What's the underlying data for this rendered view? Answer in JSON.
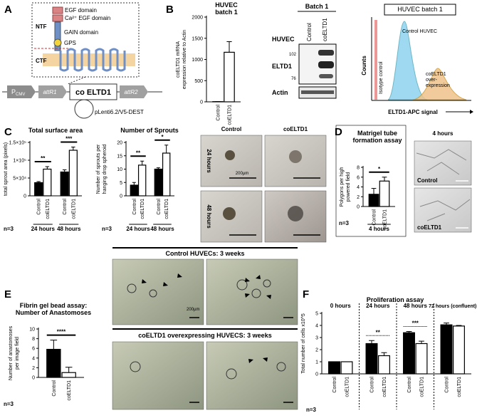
{
  "panel_labels": [
    "A",
    "B",
    "C",
    "D",
    "E",
    "F"
  ],
  "diagram": {
    "domains": [
      "NTF",
      "EGF domain",
      "Ca²⁺ EGF domain",
      "GAIN domain",
      "GPS",
      "CTF"
    ],
    "vector": {
      "promoter": "P",
      "promoter_sub": "CMV",
      "left": "attR1",
      "insert": "co ELTD1",
      "right": "attR2"
    },
    "plasmid": "pLenti6.2/V5-DEST"
  },
  "western": {
    "title": "Batch 1",
    "cell": "HUVEC",
    "lanes": [
      "Control",
      "coELTD1"
    ],
    "markers": [
      "102",
      "76"
    ],
    "rows": [
      "ELTD1",
      "Actin"
    ]
  },
  "flow": {
    "title": "HUVEC batch 1",
    "ylabel": "Counts",
    "xlabel": "ELTD1-APC signal",
    "labels": [
      "Isotype control",
      "Control HUVEC"
    ],
    "overexpression_label": [
      "coELTD1",
      "over-",
      "expression"
    ]
  },
  "spheroid_images": {
    "columns": [
      "Control",
      "coELTD1"
    ],
    "rows": [
      "24 hours",
      "48 hours"
    ],
    "scale": "200µm"
  },
  "tube_images": {
    "title": "4 hours",
    "labels": [
      "Control",
      "coELTD1"
    ]
  },
  "bead_images": {
    "titles": [
      "Control HUVECs: 3 weeks",
      "coELTD1 overexpressing HUVECS: 3 weeks"
    ],
    "scale": "200µm"
  },
  "chart_data": [
    {
      "type": "bar",
      "title": [
        "HUVEC",
        "batch 1"
      ],
      "ylabel": [
        "coELTD1 mRNA",
        "expression relative to Actin"
      ],
      "categories": [
        null
      ],
      "series": [
        {
          "name": "Control",
          "color": "#ffffff",
          "values": [
            5
          ],
          "errors": [
            0
          ]
        },
        {
          "name": "coELTD1",
          "color": "#ffffff",
          "values": [
            1170
          ],
          "errors": [
            250
          ]
        }
      ],
      "ylim": [
        0,
        2000
      ],
      "yticks": [
        0,
        500,
        1000,
        1500,
        2000
      ],
      "significance": [
        null
      ]
    },
    {
      "type": "bar",
      "title": [
        "Total surface area"
      ],
      "ylabel": [
        "total sprout area (pixels)"
      ],
      "n": "n=3",
      "categories": [
        "24 hours",
        "48 hours"
      ],
      "series": [
        {
          "name": "Control",
          "color": "#000000",
          "values": [
            37000,
            67000
          ],
          "errors": [
            3000,
            6000
          ]
        },
        {
          "name": "coELTD1",
          "color": "#ffffff",
          "values": [
            75000,
            128000
          ],
          "errors": [
            7000,
            9000
          ]
        }
      ],
      "ylim": [
        0,
        150000
      ],
      "yticks": [
        0,
        {
          "value": 50000,
          "label": "5×10⁴"
        },
        {
          "value": 100000,
          "label": "1×10⁵"
        },
        {
          "value": 150000,
          "label": "1.5×10⁵"
        }
      ],
      "significance": [
        "**",
        "***"
      ]
    },
    {
      "type": "bar",
      "title": [
        "Number of Sprouts"
      ],
      "ylabel": [
        "Number of sprouts per",
        "hanging drop spheroid"
      ],
      "n": "n=3",
      "categories": [
        "24 hours",
        "48 hours"
      ],
      "series": [
        {
          "name": "Control",
          "color": "#000000",
          "values": [
            4,
            10
          ],
          "errors": [
            1,
            0.5
          ]
        },
        {
          "name": "coELTD1",
          "color": "#ffffff",
          "values": [
            11.5,
            16
          ],
          "errors": [
            1.5,
            3
          ]
        }
      ],
      "ylim": [
        0,
        20
      ],
      "yticks": [
        0,
        5,
        10,
        15,
        20
      ],
      "significance": [
        "**",
        "*"
      ]
    },
    {
      "type": "bar",
      "title": [
        "Matrigel tube",
        "formation assay"
      ],
      "ylabel": [
        "Polygons per high",
        "powered field"
      ],
      "n": "n=3",
      "categories": [
        "4 hours"
      ],
      "series": [
        {
          "name": "Control",
          "color": "#000000",
          "values": [
            2.5
          ],
          "errors": [
            1.2
          ]
        },
        {
          "name": "coELTD1",
          "color": "#ffffff",
          "values": [
            5.2
          ],
          "errors": [
            0.8
          ]
        }
      ],
      "ylim": [
        0,
        8
      ],
      "yticks": [
        0,
        2,
        4,
        6,
        8
      ],
      "significance": [
        "*"
      ]
    },
    {
      "type": "bar",
      "title": [
        "Fibrin gel bead assay:",
        "Number of Anastomoses"
      ],
      "ylabel": [
        "Number of anastomoses",
        "per image field"
      ],
      "n": "n=3",
      "categories": [
        null
      ],
      "series": [
        {
          "name": "Control",
          "color": "#000000",
          "values": [
            5.8
          ],
          "errors": [
            1.9
          ]
        },
        {
          "name": "coELTD1",
          "color": "#ffffff",
          "values": [
            1.0
          ],
          "errors": [
            1.1
          ]
        }
      ],
      "ylim": [
        0,
        10
      ],
      "yticks": [
        0,
        2,
        4,
        6,
        8,
        10
      ],
      "significance": [
        "****"
      ]
    },
    {
      "type": "bar",
      "title": [
        "Proliferation assay"
      ],
      "ylabel": [
        "Total number of cells x10^5"
      ],
      "n": "n=3",
      "categories": [
        "0 hours",
        "24 hours",
        "48 hours",
        "72 hours (confluent)"
      ],
      "series": [
        {
          "name": "Control",
          "color": "#000000",
          "values": [
            1,
            2.5,
            3.4,
            4.05
          ],
          "errors": [
            0,
            0.25,
            0.1,
            0.15
          ]
        },
        {
          "name": "coELTD1",
          "color": "#ffffff",
          "values": [
            1,
            1.5,
            2.5,
            3.95
          ],
          "errors": [
            0,
            0.25,
            0.2,
            0.05
          ]
        }
      ],
      "ylim": [
        0,
        5
      ],
      "yticks": [
        0,
        1,
        2,
        3,
        4,
        5
      ],
      "significance": [
        null,
        "**",
        "***",
        null
      ]
    }
  ]
}
